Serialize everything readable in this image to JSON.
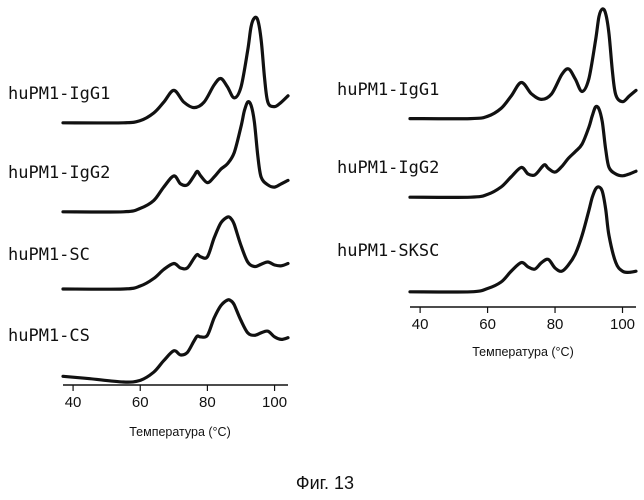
{
  "caption": "Фиг. 13",
  "chart_data": [
    {
      "type": "line",
      "xlabel": "Температура (°C)",
      "xlim": [
        37,
        104
      ],
      "xticks": [
        40,
        60,
        80,
        100
      ],
      "grid": false,
      "series": [
        {
          "name": "huPM1-IgG1",
          "x": [
            37,
            55,
            60,
            64,
            67,
            70,
            73,
            76,
            79,
            82,
            84,
            86,
            88,
            90,
            92,
            93,
            94,
            95,
            96,
            97,
            98,
            100,
            102,
            104
          ],
          "y": [
            0.03,
            0.03,
            0.05,
            0.12,
            0.22,
            0.33,
            0.22,
            0.17,
            0.22,
            0.38,
            0.44,
            0.36,
            0.26,
            0.36,
            0.7,
            0.92,
            1.0,
            0.98,
            0.8,
            0.45,
            0.22,
            0.18,
            0.22,
            0.28
          ]
        },
        {
          "name": "huPM1-IgG2",
          "x": [
            37,
            55,
            60,
            64,
            67,
            70,
            72,
            74,
            76,
            77,
            78,
            80,
            82,
            84,
            86,
            88,
            90,
            91,
            92,
            93,
            94,
            95,
            96,
            98,
            100,
            102,
            104
          ],
          "y": [
            0.02,
            0.02,
            0.05,
            0.12,
            0.24,
            0.34,
            0.27,
            0.26,
            0.34,
            0.38,
            0.34,
            0.28,
            0.33,
            0.4,
            0.45,
            0.55,
            0.78,
            0.92,
            1.0,
            0.97,
            0.82,
            0.52,
            0.33,
            0.26,
            0.24,
            0.27,
            0.3
          ]
        },
        {
          "name": "huPM1-SC",
          "x": [
            37,
            55,
            60,
            64,
            67,
            70,
            72,
            74,
            76,
            77,
            78,
            80,
            82,
            84,
            86,
            87,
            88,
            90,
            92,
            94,
            96,
            98,
            100,
            102,
            104
          ],
          "y": [
            0.04,
            0.04,
            0.08,
            0.18,
            0.3,
            0.38,
            0.32,
            0.32,
            0.45,
            0.5,
            0.47,
            0.47,
            0.72,
            0.92,
            1.0,
            0.98,
            0.9,
            0.62,
            0.4,
            0.34,
            0.37,
            0.4,
            0.36,
            0.35,
            0.38
          ]
        },
        {
          "name": "huPM1-CS",
          "x": [
            37,
            45,
            55,
            60,
            64,
            67,
            70,
            72,
            74,
            76,
            77,
            78,
            80,
            82,
            84,
            86,
            87,
            88,
            90,
            92,
            94,
            96,
            98,
            100,
            102,
            104
          ],
          "y": [
            0.07,
            0.04,
            0.0,
            0.02,
            0.12,
            0.26,
            0.38,
            0.33,
            0.36,
            0.5,
            0.56,
            0.55,
            0.57,
            0.78,
            0.93,
            1.0,
            0.99,
            0.94,
            0.75,
            0.6,
            0.57,
            0.6,
            0.62,
            0.55,
            0.52,
            0.54
          ]
        }
      ]
    },
    {
      "type": "line",
      "xlabel": "Температура (°C)",
      "xlim": [
        37,
        104
      ],
      "xticks": [
        40,
        60,
        80,
        100
      ],
      "grid": false,
      "series": [
        {
          "name": "huPM1-IgG1",
          "x": [
            37,
            55,
            60,
            64,
            67,
            70,
            73,
            76,
            79,
            82,
            84,
            86,
            88,
            90,
            92,
            93,
            94,
            95,
            96,
            97,
            98,
            100,
            102,
            104
          ],
          "y": [
            0.03,
            0.03,
            0.05,
            0.12,
            0.23,
            0.35,
            0.25,
            0.2,
            0.25,
            0.42,
            0.47,
            0.38,
            0.27,
            0.38,
            0.72,
            0.93,
            1.0,
            0.96,
            0.78,
            0.45,
            0.24,
            0.18,
            0.23,
            0.28
          ]
        },
        {
          "name": "huPM1-IgG2",
          "x": [
            37,
            55,
            60,
            64,
            67,
            70,
            72,
            74,
            76,
            77,
            78,
            80,
            82,
            84,
            86,
            88,
            90,
            91,
            92,
            93,
            94,
            95,
            96,
            98,
            100,
            102,
            104
          ],
          "y": [
            0.03,
            0.03,
            0.06,
            0.14,
            0.25,
            0.35,
            0.28,
            0.27,
            0.35,
            0.38,
            0.34,
            0.3,
            0.36,
            0.45,
            0.52,
            0.6,
            0.78,
            0.9,
            1.0,
            0.98,
            0.84,
            0.55,
            0.35,
            0.28,
            0.26,
            0.28,
            0.31
          ]
        },
        {
          "name": "huPM1-SKSC",
          "x": [
            37,
            55,
            60,
            64,
            67,
            70,
            72,
            74,
            76,
            78,
            80,
            82,
            84,
            86,
            88,
            90,
            91,
            92,
            93,
            94,
            95,
            96,
            98,
            100,
            102,
            104
          ],
          "y": [
            0.03,
            0.03,
            0.06,
            0.12,
            0.22,
            0.3,
            0.26,
            0.24,
            0.3,
            0.33,
            0.25,
            0.22,
            0.28,
            0.38,
            0.55,
            0.78,
            0.9,
            0.98,
            1.0,
            0.96,
            0.8,
            0.55,
            0.3,
            0.22,
            0.21,
            0.22
          ]
        }
      ]
    }
  ]
}
